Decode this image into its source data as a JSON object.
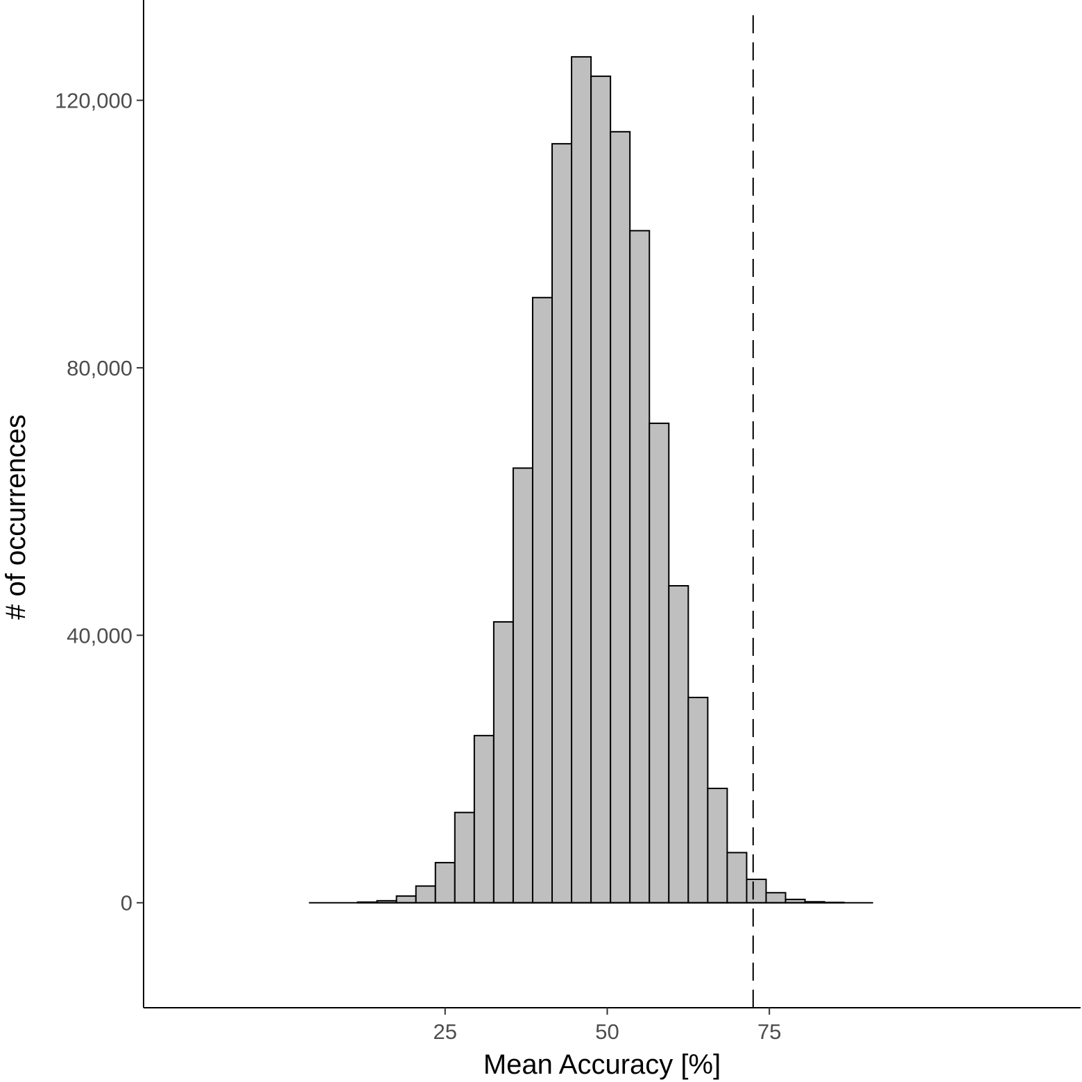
{
  "chart_data": {
    "type": "bar",
    "title": "",
    "xlabel": "Mean Accuracy [%]",
    "ylabel": "# of occurrences",
    "bin_width": 3,
    "bins": [
      {
        "x": 10,
        "count": 0
      },
      {
        "x": 13,
        "count": 100
      },
      {
        "x": 16,
        "count": 300
      },
      {
        "x": 19,
        "count": 1000
      },
      {
        "x": 22,
        "count": 2500
      },
      {
        "x": 25,
        "count": 6000
      },
      {
        "x": 28,
        "count": 13500
      },
      {
        "x": 31,
        "count": 25000
      },
      {
        "x": 34,
        "count": 42000
      },
      {
        "x": 37,
        "count": 65000
      },
      {
        "x": 40,
        "count": 90500
      },
      {
        "x": 43,
        "count": 113500
      },
      {
        "x": 46,
        "count": 126500
      },
      {
        "x": 49,
        "count": 123600
      },
      {
        "x": 52,
        "count": 115300
      },
      {
        "x": 55,
        "count": 100500
      },
      {
        "x": 58,
        "count": 71700
      },
      {
        "x": 61,
        "count": 47400
      },
      {
        "x": 64,
        "count": 30700
      },
      {
        "x": 67,
        "count": 17100
      },
      {
        "x": 70,
        "count": 7500
      },
      {
        "x": 73,
        "count": 3500
      },
      {
        "x": 76,
        "count": 1500
      },
      {
        "x": 79,
        "count": 500
      },
      {
        "x": 82,
        "count": 150
      },
      {
        "x": 85,
        "count": 50
      }
    ],
    "reference_line": {
      "x": 72.5,
      "style": "dashed"
    },
    "x_ticks": [
      {
        "value": 25,
        "label": "25"
      },
      {
        "value": 50,
        "label": "50"
      },
      {
        "value": 75,
        "label": "75"
      }
    ],
    "y_ticks": [
      {
        "value": 0,
        "label": "0"
      },
      {
        "value": 40000,
        "label": "40,000"
      },
      {
        "value": 80000,
        "label": "80,000"
      },
      {
        "value": 120000,
        "label": "120,000"
      }
    ],
    "xlim": [
      -21.5,
      123
    ],
    "ylim": [
      -15700,
      135000
    ],
    "baseline_range": [
      4,
      91
    ],
    "grid": false,
    "bar_fill": "#bfbfbf",
    "bar_stroke": "#000000"
  }
}
